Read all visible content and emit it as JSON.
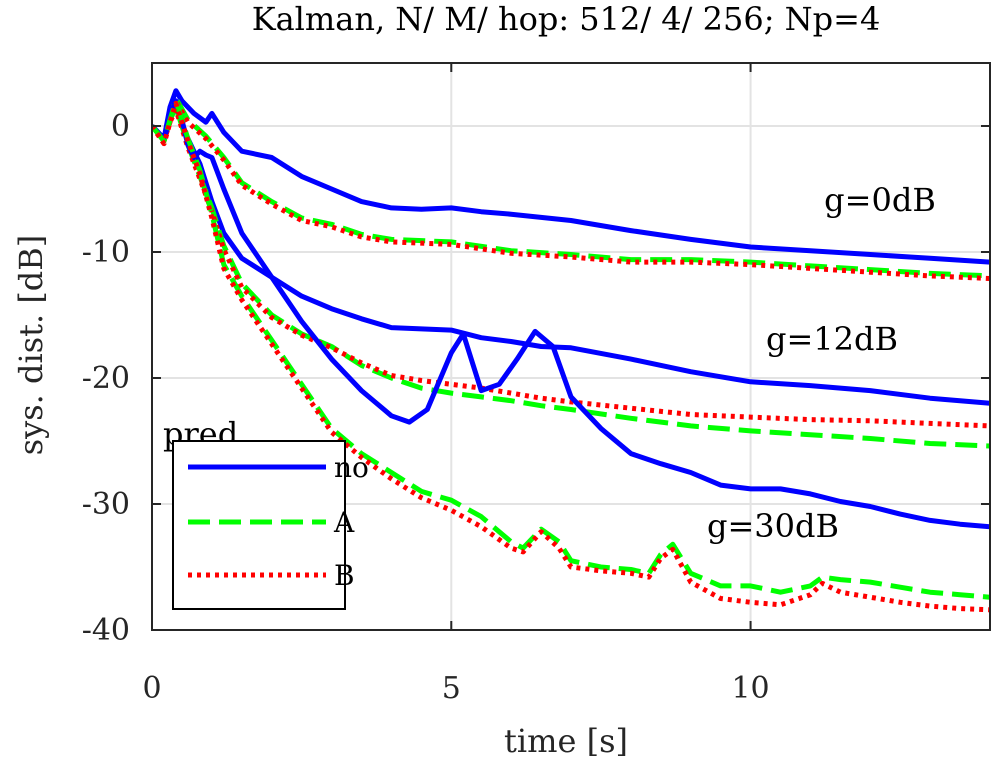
{
  "chart_data": {
    "type": "line",
    "title": "Kalman, N/ M/ hop: 512/ 4/ 256; Np=4",
    "xlabel": "time [s]",
    "ylabel": "sys. dist. [dB]",
    "xlim": [
      0,
      14
    ],
    "ylim": [
      -40,
      5
    ],
    "xticks": [
      0,
      5,
      10
    ],
    "xtick_labels": [
      "0",
      "5",
      "10"
    ],
    "yticks": [
      0,
      -10,
      -20,
      -30,
      -40
    ],
    "ytick_labels": [
      "0",
      "-10",
      "-20",
      "-30",
      "-40"
    ],
    "grid": true,
    "legend": {
      "title": "pred.",
      "position": "bottom-left",
      "entries": [
        {
          "label": "no",
          "color": "#0000ff",
          "style": "solid"
        },
        {
          "label": "A",
          "color": "#00ff00",
          "style": "dashed"
        },
        {
          "label": "B",
          "color": "#ff0000",
          "style": "dotted"
        }
      ]
    },
    "annotations": [
      {
        "text": "g=0dB",
        "x": 11.0,
        "y": -6.5
      },
      {
        "text": "g=12dB",
        "x": 10.0,
        "y": -17.3
      },
      {
        "text": "g=30dB",
        "x": 9.0,
        "y": -32.5
      }
    ],
    "series": [
      {
        "name": "no",
        "group": "g=0dB",
        "color": "#0000ff",
        "style": "solid",
        "x": [
          0,
          0.2,
          0.3,
          0.4,
          0.5,
          0.7,
          0.9,
          1.0,
          1.2,
          1.5,
          2.0,
          2.5,
          3.0,
          3.5,
          4.0,
          4.5,
          5.0,
          5.5,
          6.0,
          7.0,
          8.0,
          9.0,
          10.0,
          11.0,
          12.0,
          13.0,
          14.0
        ],
        "y": [
          0,
          -1.0,
          1.5,
          2.8,
          2.0,
          1.0,
          0.3,
          1.0,
          -0.5,
          -2.0,
          -2.5,
          -4.0,
          -5.0,
          -6.0,
          -6.5,
          -6.6,
          -6.5,
          -6.8,
          -7.0,
          -7.5,
          -8.3,
          -9.0,
          -9.6,
          -9.9,
          -10.2,
          -10.5,
          -10.8
        ]
      },
      {
        "name": "A",
        "group": "g=0dB",
        "color": "#00ff00",
        "style": "dashed",
        "x": [
          0,
          0.2,
          0.3,
          0.4,
          0.6,
          0.9,
          1.2,
          1.5,
          2.0,
          2.5,
          3.0,
          3.5,
          4.0,
          5.0,
          6.0,
          7.0,
          8.0,
          9.0,
          10.0,
          11.0,
          12.0,
          13.0,
          14.0
        ],
        "y": [
          0,
          -1.0,
          0.5,
          2.2,
          0.5,
          -0.8,
          -2.5,
          -4.5,
          -6.0,
          -7.3,
          -7.8,
          -8.6,
          -9.0,
          -9.2,
          -9.9,
          -10.2,
          -10.6,
          -10.6,
          -10.8,
          -11.1,
          -11.4,
          -11.7,
          -11.9
        ]
      },
      {
        "name": "B",
        "group": "g=0dB",
        "color": "#ff0000",
        "style": "dotted",
        "x": [
          0,
          0.2,
          0.3,
          0.4,
          0.6,
          0.9,
          1.2,
          1.5,
          2.0,
          2.5,
          3.0,
          3.5,
          4.0,
          5.0,
          6.0,
          7.0,
          8.0,
          9.0,
          10.0,
          11.0,
          12.0,
          13.0,
          14.0
        ],
        "y": [
          0,
          -1.2,
          0.3,
          2.0,
          0.3,
          -1.0,
          -2.7,
          -4.7,
          -6.2,
          -7.5,
          -8.0,
          -8.8,
          -9.2,
          -9.4,
          -10.1,
          -10.4,
          -10.8,
          -10.8,
          -11.0,
          -11.3,
          -11.6,
          -11.9,
          -12.1
        ]
      },
      {
        "name": "no",
        "group": "g=12dB",
        "color": "#0000ff",
        "style": "solid",
        "x": [
          0,
          0.2,
          0.3,
          0.4,
          0.6,
          0.8,
          1.0,
          1.2,
          1.5,
          2.0,
          2.5,
          3.0,
          3.5,
          4.0,
          4.5,
          5.0,
          5.5,
          6.0,
          6.5,
          7.0,
          8.0,
          9.0,
          10.0,
          11.0,
          12.0,
          13.0,
          14.0
        ],
        "y": [
          0,
          -1.0,
          0.5,
          1.5,
          -1.0,
          -3.0,
          -6.0,
          -8.5,
          -10.5,
          -12.0,
          -13.5,
          -14.5,
          -15.3,
          -16.0,
          -16.1,
          -16.2,
          -16.8,
          -17.1,
          -17.5,
          -17.6,
          -18.5,
          -19.5,
          -20.3,
          -20.6,
          -21.0,
          -21.6,
          -22.0
        ]
      },
      {
        "name": "A",
        "group": "g=12dB",
        "color": "#00ff00",
        "style": "dashed",
        "x": [
          0,
          0.2,
          0.3,
          0.4,
          0.6,
          0.8,
          1.0,
          1.2,
          1.5,
          2.0,
          2.5,
          3.0,
          3.5,
          4.0,
          4.5,
          5.0,
          5.5,
          6.0,
          6.5,
          7.0,
          8.0,
          9.0,
          10.0,
          11.0,
          12.0,
          13.0,
          14.0
        ],
        "y": [
          0,
          -1.2,
          0.5,
          1.5,
          -1.5,
          -4.0,
          -6.5,
          -9.5,
          -12.5,
          -15.0,
          -16.5,
          -17.5,
          -19.0,
          -20.0,
          -20.8,
          -21.2,
          -21.5,
          -21.8,
          -22.2,
          -22.5,
          -23.2,
          -23.8,
          -24.2,
          -24.5,
          -24.8,
          -25.2,
          -25.4
        ]
      },
      {
        "name": "B",
        "group": "g=12dB",
        "color": "#ff0000",
        "style": "dotted",
        "x": [
          0,
          0.2,
          0.3,
          0.4,
          0.6,
          0.8,
          1.0,
          1.2,
          1.5,
          2.0,
          2.5,
          3.0,
          3.5,
          4.0,
          4.5,
          5.0,
          5.5,
          6.0,
          6.5,
          7.0,
          8.0,
          9.0,
          10.0,
          11.0,
          12.0,
          13.0,
          14.0
        ],
        "y": [
          0,
          -1.4,
          0.3,
          1.3,
          -1.7,
          -4.2,
          -6.8,
          -9.8,
          -12.8,
          -15.2,
          -16.6,
          -17.6,
          -18.8,
          -19.8,
          -20.2,
          -20.5,
          -20.8,
          -21.2,
          -21.6,
          -21.9,
          -22.4,
          -22.9,
          -23.1,
          -23.3,
          -23.4,
          -23.6,
          -23.8
        ]
      },
      {
        "name": "no",
        "group": "g=30dB",
        "color": "#0000ff",
        "style": "solid",
        "x": [
          0,
          0.2,
          0.3,
          0.4,
          0.5,
          0.6,
          0.7,
          0.8,
          0.9,
          1.0,
          1.2,
          1.5,
          2.0,
          2.5,
          3.0,
          3.5,
          4.0,
          4.3,
          4.6,
          5.0,
          5.2,
          5.5,
          5.8,
          6.1,
          6.4,
          6.7,
          7.0,
          7.5,
          8.0,
          8.5,
          9.0,
          9.5,
          10.0,
          10.5,
          11.0,
          11.5,
          12.0,
          12.5,
          13.0,
          13.5,
          14.0
        ],
        "y": [
          0,
          -1.0,
          0.8,
          2.0,
          0.5,
          -1.5,
          -2.5,
          -2.0,
          -2.3,
          -2.5,
          -5.0,
          -8.5,
          -12.0,
          -15.5,
          -18.5,
          -21.0,
          -23.0,
          -23.5,
          -22.5,
          -18.0,
          -16.5,
          -21.0,
          -20.5,
          -18.5,
          -16.3,
          -17.5,
          -21.5,
          -24.0,
          -26.0,
          -26.8,
          -27.5,
          -28.5,
          -28.8,
          -28.8,
          -29.2,
          -29.8,
          -30.2,
          -30.8,
          -31.3,
          -31.6,
          -31.8
        ]
      },
      {
        "name": "A",
        "group": "g=30dB",
        "color": "#00ff00",
        "style": "dashed",
        "x": [
          0,
          0.2,
          0.3,
          0.4,
          0.6,
          0.8,
          1.0,
          1.2,
          1.5,
          2.0,
          2.5,
          3.0,
          3.5,
          4.0,
          4.5,
          5.0,
          5.5,
          6.0,
          6.2,
          6.5,
          6.8,
          7.0,
          7.5,
          8.0,
          8.3,
          8.5,
          8.7,
          9.0,
          9.5,
          10.0,
          10.5,
          11.0,
          11.2,
          11.5,
          12.0,
          12.5,
          13.0,
          13.5,
          14.0
        ],
        "y": [
          0,
          -1.2,
          0.5,
          2.0,
          -1.0,
          -3.5,
          -7.0,
          -11.0,
          -13.5,
          -17.0,
          -20.5,
          -24.0,
          -26.0,
          -27.5,
          -29.0,
          -29.7,
          -31.0,
          -33.0,
          -33.5,
          -32.0,
          -33.0,
          -34.5,
          -35.0,
          -35.2,
          -35.5,
          -34.0,
          -33.2,
          -35.5,
          -36.5,
          -36.5,
          -37.0,
          -36.5,
          -35.8,
          -36.0,
          -36.2,
          -36.6,
          -37.0,
          -37.2,
          -37.4
        ]
      },
      {
        "name": "B",
        "group": "g=30dB",
        "color": "#ff0000",
        "style": "dotted",
        "x": [
          0,
          0.2,
          0.3,
          0.4,
          0.6,
          0.8,
          1.0,
          1.2,
          1.5,
          2.0,
          2.5,
          3.0,
          3.5,
          4.0,
          4.5,
          5.0,
          5.5,
          6.0,
          6.2,
          6.5,
          6.8,
          7.0,
          7.5,
          8.0,
          8.3,
          8.5,
          8.7,
          9.0,
          9.5,
          10.0,
          10.5,
          11.0,
          11.2,
          11.5,
          12.0,
          12.5,
          13.0,
          13.5,
          14.0
        ],
        "y": [
          0,
          -1.4,
          0.3,
          1.8,
          -1.2,
          -3.8,
          -7.3,
          -11.3,
          -13.8,
          -17.3,
          -20.8,
          -24.3,
          -26.3,
          -28.0,
          -29.5,
          -30.5,
          -31.8,
          -33.5,
          -33.8,
          -32.2,
          -33.5,
          -35.0,
          -35.3,
          -35.5,
          -35.8,
          -34.3,
          -33.6,
          -36.2,
          -37.5,
          -37.8,
          -38.0,
          -37.2,
          -36.3,
          -37.0,
          -37.4,
          -37.8,
          -38.1,
          -38.3,
          -38.4
        ]
      }
    ]
  }
}
